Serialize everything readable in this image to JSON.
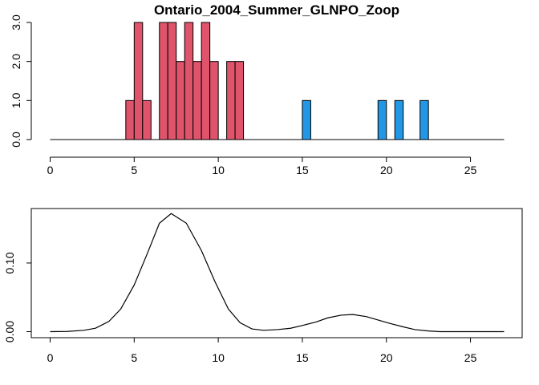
{
  "chart_data": [
    {
      "type": "bar",
      "title": "Ontario_2004_Summer_GLNPO_Zoop",
      "xlabel": "",
      "ylabel": "",
      "xlim": [
        0,
        27
      ],
      "ylim": [
        0,
        3
      ],
      "x_ticks": [
        "0",
        "5",
        "10",
        "15",
        "20",
        "25"
      ],
      "y_ticks": [
        "0.0",
        "1.0",
        "2.0",
        "3.0"
      ],
      "bin_width": 0.5,
      "colors": {
        "group1": "#DF536B",
        "group2": "#2297E6"
      },
      "bars": [
        {
          "x": 4.75,
          "value": 1,
          "group": "group1"
        },
        {
          "x": 5.25,
          "value": 3,
          "group": "group1"
        },
        {
          "x": 5.75,
          "value": 1,
          "group": "group1"
        },
        {
          "x": 6.75,
          "value": 3,
          "group": "group1"
        },
        {
          "x": 7.25,
          "value": 3,
          "group": "group1"
        },
        {
          "x": 7.75,
          "value": 2,
          "group": "group1"
        },
        {
          "x": 8.25,
          "value": 3,
          "group": "group1"
        },
        {
          "x": 8.75,
          "value": 2,
          "group": "group1"
        },
        {
          "x": 9.25,
          "value": 3,
          "group": "group1"
        },
        {
          "x": 9.75,
          "value": 2,
          "group": "group1"
        },
        {
          "x": 10.75,
          "value": 2,
          "group": "group1"
        },
        {
          "x": 11.25,
          "value": 2,
          "group": "group1"
        },
        {
          "x": 15.25,
          "value": 1,
          "group": "group2"
        },
        {
          "x": 19.75,
          "value": 1,
          "group": "group2"
        },
        {
          "x": 20.75,
          "value": 1,
          "group": "group2"
        },
        {
          "x": 22.25,
          "value": 1,
          "group": "group2"
        }
      ]
    },
    {
      "type": "line",
      "title": "",
      "xlabel": "",
      "ylabel": "",
      "xlim": [
        0,
        27
      ],
      "ylim": [
        0,
        0.17
      ],
      "x_ticks": [
        "0",
        "5",
        "10",
        "15",
        "20",
        "25"
      ],
      "y_ticks": [
        "0.00",
        "0.10"
      ],
      "series": [
        {
          "x": [
            0,
            1,
            2,
            2.7,
            3.5,
            4.2,
            5,
            5.8,
            6.5,
            7.2,
            8.1,
            9,
            9.8,
            10.6,
            11.3,
            12,
            12.7,
            13.5,
            14.3,
            15,
            15.8,
            16.5,
            17.3,
            18,
            18.8,
            19.5,
            20.2,
            21,
            21.7,
            22.5,
            23.2,
            24,
            24.8,
            25.5,
            26.3,
            27
          ],
          "y": [
            0.0,
            0.0003,
            0.002,
            0.005,
            0.015,
            0.033,
            0.068,
            0.115,
            0.158,
            0.172,
            0.158,
            0.118,
            0.073,
            0.033,
            0.013,
            0.004,
            0.002,
            0.003,
            0.005,
            0.009,
            0.014,
            0.02,
            0.024,
            0.025,
            0.022,
            0.017,
            0.012,
            0.007,
            0.003,
            0.001,
            0.0,
            0.0,
            0.0,
            0.0,
            0.0,
            0.0
          ]
        }
      ]
    }
  ]
}
